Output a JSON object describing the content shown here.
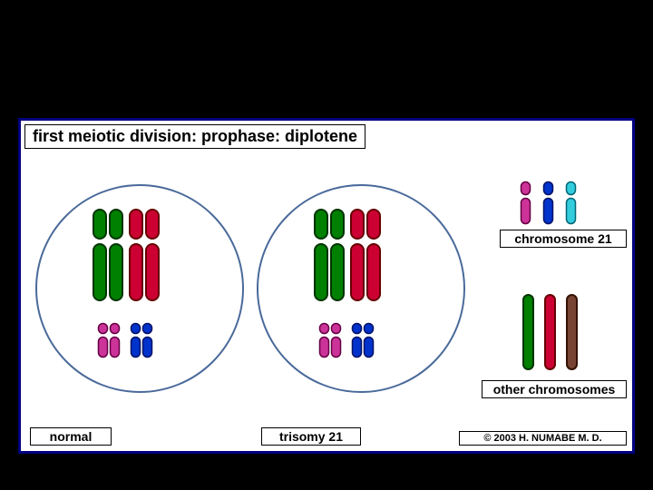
{
  "title": "first meiotic division:  prophase:  diplotene",
  "labels": {
    "normal": "normal",
    "trisomy": "trisomy 21",
    "chr21": "chromosome 21",
    "other": "other chromosomes",
    "copyright": "© 2003  H. NUMABE M. D."
  },
  "colors": {
    "frame_border": "#000080",
    "circle_border": "#4a6a9a",
    "bg": "#ffffff",
    "outer_bg": "#000000",
    "chrom_green": "#008000",
    "chrom_green_outline": "#003300",
    "chrom_red": "#cc0033",
    "chrom_red_outline": "#660000",
    "chrom_magenta": "#cc3399",
    "chrom_magenta_outline": "#660044",
    "chrom_blue": "#0033cc",
    "chrom_blue_outline": "#001166",
    "chrom_cyan": "#33ccdd",
    "chrom_cyan_outline": "#006677",
    "chrom_brown": "#774433",
    "chrom_brown_outline": "#331100"
  },
  "diagram": {
    "circle_diameter": 230,
    "large_chrom": {
      "width": 14,
      "upper": 32,
      "lower": 62,
      "gap": 6,
      "stroke": 2
    },
    "small_chrom": {
      "width": 10,
      "upper": 11,
      "lower": 22,
      "gap": 4,
      "stroke": 1.5
    },
    "legend_small_chrom": {
      "width": 10,
      "upper": 14,
      "lower": 28,
      "gap": 4,
      "stroke": 1.5
    },
    "legend_rod": {
      "width": 11,
      "height": 82,
      "stroke": 2
    }
  }
}
